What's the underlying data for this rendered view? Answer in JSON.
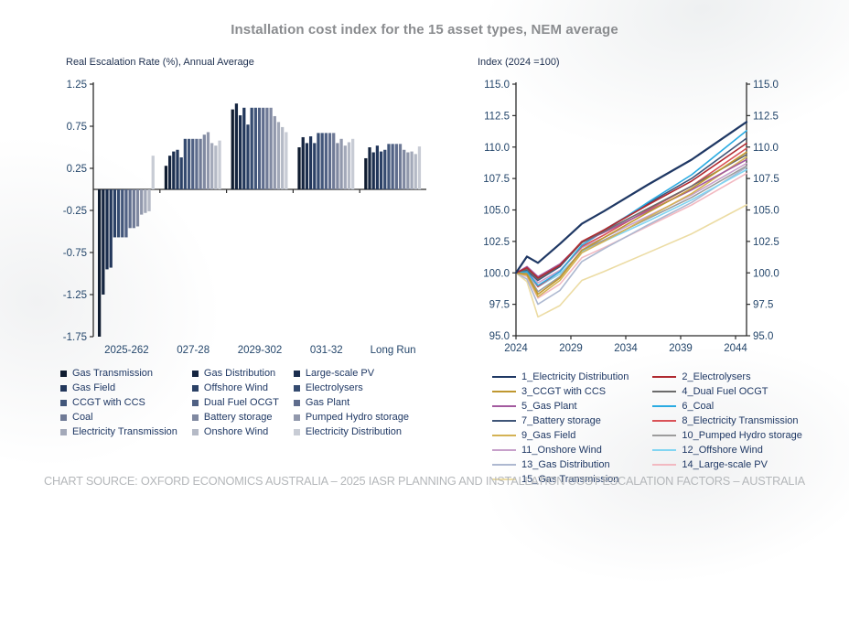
{
  "page": {
    "title": "Installation cost index for the 15 asset types, NEM average",
    "footer": "CHART SOURCE: OXFORD ECONOMICS AUSTRALIA – 2025 IASR PLANNING AND INSTALLATION COST ESCALATION FACTORS – AUSTRALIA"
  },
  "chart_data": [
    {
      "type": "bar",
      "title": "Real Escalation Rate (%), Annual Average",
      "ylabel": "Real Escalation Rate (%)",
      "ylim": [
        -1.75,
        1.25
      ],
      "yticks": [
        1.25,
        0.75,
        0.25,
        -0.25,
        -0.75,
        -1.25,
        -1.75
      ],
      "categories": [
        "2025-262",
        "027-28",
        "2029-302",
        "031-32",
        "Long Run"
      ],
      "bar_series_order": [
        "Gas Transmission",
        "Gas Distribution",
        "Large-scale PV",
        "Gas Field",
        "Offshore Wind",
        "Electrolysers",
        "CCGT with CCS",
        "Dual Fuel OCGT",
        "Gas Plant",
        "Coal",
        "Battery storage",
        "Pumped Hydro storage",
        "Electricity Transmission",
        "Onshore Wind",
        "Electricity Distribution"
      ],
      "palette": [
        "#0f1c30",
        "#152540",
        "#1b2e4e",
        "#22375b",
        "#2b4166",
        "#354b70",
        "#42567a",
        "#506184",
        "#5f6d8d",
        "#6f7a96",
        "#8089a1",
        "#9198ac",
        "#a3a9b9",
        "#b5bac6",
        "#c8ccd5"
      ],
      "groups": [
        {
          "label": "2025-262",
          "values": [
            -1.75,
            -1.25,
            -0.95,
            -0.93,
            -0.57,
            -0.57,
            -0.57,
            -0.57,
            -0.46,
            -0.46,
            -0.44,
            -0.3,
            -0.28,
            -0.26,
            0.4
          ]
        },
        {
          "label": "027-28",
          "values": [
            0.28,
            0.4,
            0.45,
            0.47,
            0.38,
            0.6,
            0.6,
            0.6,
            0.6,
            0.6,
            0.65,
            0.68,
            0.55,
            0.52,
            0.58
          ]
        },
        {
          "label": "2029-302",
          "values": [
            0.95,
            1.02,
            0.88,
            0.97,
            0.77,
            0.97,
            0.97,
            0.97,
            0.97,
            0.97,
            0.97,
            0.87,
            0.8,
            0.74,
            0.68
          ]
        },
        {
          "label": "031-32",
          "values": [
            0.5,
            0.62,
            0.55,
            0.63,
            0.55,
            0.67,
            0.67,
            0.67,
            0.67,
            0.67,
            0.55,
            0.6,
            0.52,
            0.56,
            0.6
          ]
        },
        {
          "label": "Long Run",
          "values": [
            0.37,
            0.5,
            0.44,
            0.52,
            0.45,
            0.47,
            0.54,
            0.54,
            0.54,
            0.54,
            0.47,
            0.44,
            0.45,
            0.42,
            0.51
          ]
        }
      ]
    },
    {
      "type": "line",
      "title": "Index (2024 =100)",
      "ylim": [
        95,
        115
      ],
      "yticks": [
        "115.0",
        "112.5",
        "110.0",
        "107.5",
        "105.0",
        "102.5",
        "100.0",
        "97.5",
        "95.0"
      ],
      "x": [
        2024,
        2025,
        2026,
        2028,
        2030,
        2032,
        2036,
        2040,
        2045
      ],
      "xticks": [
        "2024",
        "2029",
        "2034",
        "2039",
        "2044"
      ],
      "xtick_years": [
        2024,
        2029,
        2034,
        2039,
        2044
      ],
      "series": [
        {
          "name": "1_Electricity Distribution",
          "color": "#1f3864",
          "values": [
            100,
            101.3,
            100.8,
            102.3,
            103.9,
            104.9,
            107.0,
            109.0,
            112.0
          ]
        },
        {
          "name": "2_Electrolysers",
          "color": "#b02a30",
          "values": [
            100,
            100.4,
            99.6,
            100.6,
            102.5,
            103.4,
            105.4,
            107.3,
            110.3
          ]
        },
        {
          "name": "3_CCGT with CCS",
          "color": "#bf9730",
          "values": [
            100,
            99.9,
            98.3,
            99.6,
            101.8,
            102.8,
            104.8,
            106.7,
            109.6
          ]
        },
        {
          "name": "4_Dual Fuel OCGT",
          "color": "#6b6b6b",
          "values": [
            100,
            100.3,
            99.5,
            100.6,
            102.4,
            103.3,
            105.1,
            106.9,
            109.4
          ]
        },
        {
          "name": "5_Gas Plant",
          "color": "#a35a9f",
          "values": [
            100,
            100.5,
            99.7,
            100.7,
            102.4,
            103.2,
            104.9,
            106.6,
            109.0
          ]
        },
        {
          "name": "6_Coal",
          "color": "#2aabe2",
          "values": [
            100,
            100.1,
            99.0,
            100.1,
            102.2,
            103.3,
            105.6,
            107.8,
            111.3
          ]
        },
        {
          "name": "7_Battery storage",
          "color": "#3f5578",
          "values": [
            100,
            100.2,
            99.4,
            100.5,
            102.4,
            103.4,
            105.5,
            107.5,
            110.7
          ]
        },
        {
          "name": "8_Electricity Transmission",
          "color": "#d95257",
          "values": [
            100,
            100.2,
            98.9,
            100.1,
            102.1,
            103.0,
            105.0,
            106.9,
            109.9
          ]
        },
        {
          "name": "9_Gas Field",
          "color": "#d4b254",
          "values": [
            100,
            99.8,
            98.1,
            99.4,
            101.6,
            102.5,
            104.4,
            106.3,
            109.2
          ]
        },
        {
          "name": "10_Pumped Hydro storage",
          "color": "#9c9c9c",
          "values": [
            100,
            100.0,
            98.5,
            99.7,
            101.8,
            102.6,
            104.3,
            106.0,
            108.5
          ]
        },
        {
          "name": "11_Onshore Wind",
          "color": "#c7a0ca",
          "values": [
            100,
            100.3,
            99.2,
            100.2,
            102.0,
            102.8,
            104.5,
            106.2,
            108.7
          ]
        },
        {
          "name": "12_Offshore Wind",
          "color": "#82d5f2",
          "values": [
            100,
            100.0,
            98.9,
            99.9,
            101.7,
            102.5,
            104.1,
            105.8,
            108.2
          ]
        },
        {
          "name": "13_Gas Distribution",
          "color": "#adb8d0",
          "values": [
            100,
            99.5,
            97.5,
            98.6,
            100.9,
            101.9,
            103.8,
            105.6,
            108.4
          ]
        },
        {
          "name": "14_Large-scale PV",
          "color": "#f2b9c1",
          "values": [
            100,
            99.7,
            98.0,
            99.1,
            101.2,
            102.0,
            103.7,
            105.4,
            107.9
          ]
        },
        {
          "name": "15_Gas Transmission",
          "color": "#ecdca4",
          "values": [
            100,
            99.3,
            96.5,
            97.4,
            99.4,
            100.1,
            101.6,
            103.1,
            105.4
          ]
        }
      ]
    }
  ],
  "legends": {
    "bar_legend_columns": [
      [
        {
          "label": "Gas Transmission",
          "color": "#0f1c30"
        },
        {
          "label": "Gas Field",
          "color": "#22375b"
        },
        {
          "label": "CCGT with CCS",
          "color": "#42567a"
        },
        {
          "label": "Coal",
          "color": "#6f7a96"
        },
        {
          "label": "Electricity Transmission",
          "color": "#a3a9b9"
        }
      ],
      [
        {
          "label": "Gas Distribution",
          "color": "#152540"
        },
        {
          "label": "Offshore Wind",
          "color": "#2b4166"
        },
        {
          "label": "Dual Fuel OCGT",
          "color": "#506184"
        },
        {
          "label": "Battery storage",
          "color": "#8089a1"
        },
        {
          "label": "Onshore Wind",
          "color": "#b5bac6"
        }
      ],
      [
        {
          "label": "Large-scale PV",
          "color": "#1b2e4e"
        },
        {
          "label": "Electrolysers",
          "color": "#354b70"
        },
        {
          "label": "Gas Plant",
          "color": "#5f6d8d"
        },
        {
          "label": "Pumped Hydro storage",
          "color": "#9198ac"
        },
        {
          "label": "Electricity Distribution",
          "color": "#c8ccd5"
        }
      ]
    ],
    "line_legend_columns": [
      [
        {
          "label": "1_Electricity Distribution",
          "color": "#1f3864"
        },
        {
          "label": "3_CCGT with CCS",
          "color": "#bf9730"
        },
        {
          "label": "5_Gas Plant",
          "color": "#a35a9f"
        },
        {
          "label": "7_Battery storage",
          "color": "#3f5578"
        },
        {
          "label": "9_Gas Field",
          "color": "#d4b254"
        },
        {
          "label": "11_Onshore Wind",
          "color": "#c7a0ca"
        },
        {
          "label": "13_Gas Distribution",
          "color": "#adb8d0"
        },
        {
          "label": "15_Gas Transmission",
          "color": "#ecdca4"
        }
      ],
      [
        {
          "label": "2_Electrolysers",
          "color": "#b02a30"
        },
        {
          "label": "4_Dual Fuel OCGT",
          "color": "#6b6b6b"
        },
        {
          "label": "6_Coal",
          "color": "#2aabe2"
        },
        {
          "label": "8_Electricity Transmission",
          "color": "#d95257"
        },
        {
          "label": "10_Pumped Hydro storage",
          "color": "#9c9c9c"
        },
        {
          "label": "12_Offshore Wind",
          "color": "#82d5f2"
        },
        {
          "label": "14_Large-scale PV",
          "color": "#f2b9c1"
        }
      ]
    ]
  }
}
